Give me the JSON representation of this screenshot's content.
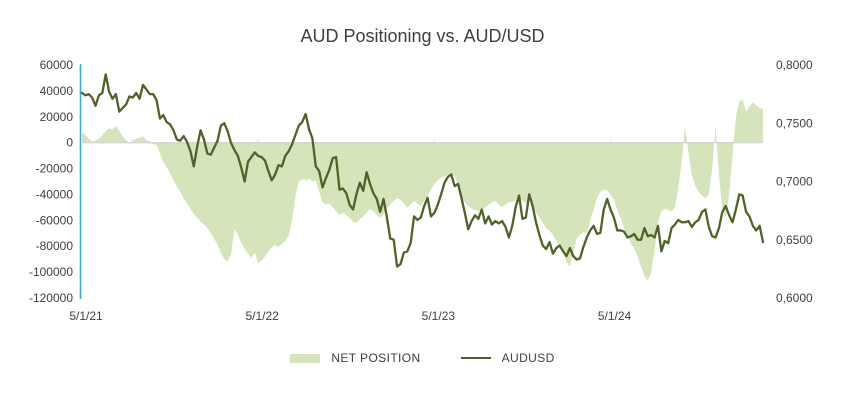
{
  "title": "AUD Positioning vs. AUD/USD",
  "legend": {
    "net_position_label": "NET POSITION",
    "audusd_label": "AUDUSD"
  },
  "colors": {
    "area": "#d6e4bc",
    "line": "#4f6228",
    "value_axis": "#45a8c8",
    "gridline": "#d2d2d2",
    "text": "#404040"
  },
  "axes": {
    "left_ticks": [
      "60000",
      "40000",
      "20000",
      "0",
      "-20000",
      "-40000",
      "-60000",
      "-80000",
      "-100000",
      "-120000"
    ],
    "right_ticks": [
      "0,8000",
      "0,7500",
      "0,7000",
      "0,6500",
      "0,6000"
    ],
    "x_ticks": [
      "5/1/21",
      "5/1/22",
      "5/1/23",
      "5/1/24"
    ]
  },
  "chart_data": {
    "type": "combo",
    "subtypes": [
      "area",
      "line"
    ],
    "title": "AUD Positioning vs. AUD/USD",
    "x_frequency": "weekly",
    "x_tick_labels": [
      "5/1/21",
      "5/1/22",
      "5/1/23",
      "5/1/24"
    ],
    "x_tick_weeks": [
      0,
      52,
      104,
      156
    ],
    "left_axis": {
      "min": -120000,
      "max": 60000,
      "step": 20000,
      "series": "NET POSITION"
    },
    "right_axis": {
      "min": 0.6,
      "max": 0.8,
      "step": 0.05,
      "series": "AUDUSD",
      "decimal_separator": ","
    },
    "grid": "zero-line-only",
    "legend_position": "bottom",
    "series": [
      {
        "name": "NET POSITION",
        "type": "area",
        "axis": "left",
        "unit": "contracts",
        "values": [
          8000,
          6000,
          3000,
          1000,
          2000,
          3000,
          6000,
          9000,
          11000,
          10000,
          13000,
          9000,
          5000,
          2000,
          0,
          2000,
          3000,
          4000,
          5000,
          2000,
          1000,
          -1000,
          -2000,
          -8000,
          -15000,
          -19000,
          -24000,
          -29000,
          -34000,
          -38000,
          -43000,
          -47000,
          -51000,
          -55000,
          -58000,
          -61000,
          -63000,
          -66000,
          -70000,
          -74000,
          -79000,
          -85000,
          -90000,
          -92000,
          -86000,
          -67000,
          -71000,
          -77000,
          -82000,
          -86000,
          -89000,
          -85000,
          -93000,
          -91000,
          -88000,
          -84000,
          -81000,
          -79000,
          -81000,
          -78000,
          -76000,
          -72000,
          -60000,
          -42000,
          -30000,
          -28000,
          -29000,
          -28000,
          -30000,
          -29000,
          -38000,
          -46000,
          -48000,
          -47000,
          -50000,
          -53000,
          -56000,
          -54000,
          -56000,
          -58000,
          -61000,
          -62000,
          -59000,
          -57000,
          -54000,
          -51000,
          -53000,
          -56000,
          -58000,
          -55000,
          -51000,
          -48000,
          -45000,
          -43000,
          -44000,
          -47000,
          -50000,
          -48000,
          -45000,
          -47000,
          -49000,
          -45000,
          -41000,
          -36000,
          -32000,
          -29000,
          -27000,
          -26000,
          -25000,
          -25000,
          -26000,
          -33000,
          -42000,
          -46000,
          -49000,
          -51000,
          -52000,
          -53000,
          -52000,
          -50000,
          -48000,
          -46000,
          -45000,
          -48000,
          -50000,
          -48000,
          -46000,
          -46000,
          -44000,
          -43000,
          -45000,
          -47000,
          -44000,
          -49000,
          -54000,
          -58000,
          -62000,
          -66000,
          -68000,
          -71000,
          -76000,
          -81000,
          -85000,
          -92000,
          -96000,
          -85000,
          -74000,
          -71000,
          -69000,
          -70000,
          -60000,
          -52000,
          -43000,
          -38000,
          -36000,
          -37000,
          -40000,
          -44000,
          -52000,
          -58000,
          -66000,
          -72000,
          -78000,
          -82000,
          -88000,
          -96000,
          -103000,
          -107000,
          -100000,
          -83000,
          -62000,
          -53000,
          -51000,
          -52000,
          -53000,
          -50000,
          -35000,
          -15000,
          12000,
          -8000,
          -25000,
          -33000,
          -38000,
          -41000,
          -43000,
          -40000,
          -20000,
          12000,
          -25000,
          -52000,
          -58000,
          -40000,
          -10000,
          20000,
          32000,
          33000,
          24000,
          28000,
          31000,
          29000,
          27000,
          26000
        ]
      },
      {
        "name": "AUDUSD",
        "type": "line",
        "axis": "right",
        "unit": "exchange rate",
        "values": [
          0.776,
          0.774,
          0.775,
          0.772,
          0.765,
          0.774,
          0.776,
          0.792,
          0.777,
          0.771,
          0.775,
          0.76,
          0.763,
          0.766,
          0.773,
          0.772,
          0.776,
          0.771,
          0.783,
          0.779,
          0.775,
          0.775,
          0.77,
          0.754,
          0.757,
          0.751,
          0.749,
          0.744,
          0.736,
          0.735,
          0.739,
          0.734,
          0.726,
          0.713,
          0.73,
          0.744,
          0.736,
          0.724,
          0.723,
          0.729,
          0.735,
          0.748,
          0.75,
          0.743,
          0.733,
          0.727,
          0.722,
          0.712,
          0.7,
          0.717,
          0.721,
          0.725,
          0.722,
          0.721,
          0.718,
          0.709,
          0.701,
          0.706,
          0.714,
          0.713,
          0.722,
          0.726,
          0.732,
          0.74,
          0.748,
          0.751,
          0.758,
          0.745,
          0.737,
          0.713,
          0.709,
          0.695,
          0.703,
          0.71,
          0.72,
          0.721,
          0.693,
          0.694,
          0.69,
          0.68,
          0.676,
          0.689,
          0.699,
          0.692,
          0.708,
          0.698,
          0.69,
          0.685,
          0.674,
          0.685,
          0.669,
          0.651,
          0.65,
          0.627,
          0.629,
          0.639,
          0.64,
          0.647,
          0.67,
          0.667,
          0.669,
          0.679,
          0.686,
          0.67,
          0.673,
          0.68,
          0.689,
          0.699,
          0.704,
          0.706,
          0.696,
          0.698,
          0.686,
          0.673,
          0.659,
          0.666,
          0.671,
          0.668,
          0.676,
          0.664,
          0.67,
          0.663,
          0.666,
          0.664,
          0.666,
          0.661,
          0.652,
          0.662,
          0.678,
          0.688,
          0.668,
          0.669,
          0.689,
          0.679,
          0.665,
          0.654,
          0.645,
          0.642,
          0.648,
          0.638,
          0.643,
          0.645,
          0.64,
          0.636,
          0.643,
          0.636,
          0.633,
          0.634,
          0.644,
          0.652,
          0.658,
          0.662,
          0.655,
          0.656,
          0.676,
          0.685,
          0.676,
          0.669,
          0.658,
          0.658,
          0.657,
          0.652,
          0.653,
          0.655,
          0.65,
          0.65,
          0.66,
          0.653,
          0.654,
          0.652,
          0.662,
          0.64,
          0.649,
          0.647,
          0.66,
          0.663,
          0.667,
          0.665,
          0.665,
          0.666,
          0.661,
          0.665,
          0.667,
          0.674,
          0.676,
          0.661,
          0.653,
          0.652,
          0.66,
          0.674,
          0.679,
          0.671,
          0.665,
          0.676,
          0.689,
          0.688,
          0.674,
          0.67,
          0.662,
          0.658,
          0.662,
          0.648
        ]
      }
    ]
  }
}
